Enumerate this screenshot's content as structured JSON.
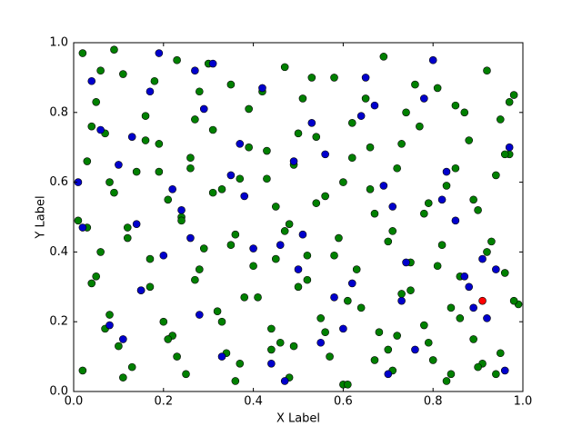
{
  "chart_data": {
    "type": "scatter",
    "xlabel": "X Label",
    "ylabel": "Y Label",
    "xlim": [
      0,
      1
    ],
    "ylim": [
      0,
      1
    ],
    "xticks": [
      {
        "value": 0,
        "label": "0.0"
      },
      0.2,
      0.4,
      0.6,
      0.8,
      {
        "value": 1,
        "label": "1.0"
      }
    ],
    "yticks": [
      {
        "value": 0,
        "label": "0.0"
      },
      0.2,
      0.4,
      0.6,
      0.8,
      {
        "value": 1,
        "label": "1.0"
      }
    ],
    "grid": false,
    "series": [
      {
        "color": "#008000",
        "x": [
          0.02,
          0.11,
          0.23,
          0.35,
          0.47,
          0.58,
          0.69,
          0.81,
          0.92,
          0.98,
          0.05,
          0.16,
          0.28,
          0.39,
          0.51,
          0.62,
          0.74,
          0.85,
          0.95,
          0.07,
          0.19,
          0.31,
          0.43,
          0.54,
          0.66,
          0.77,
          0.88,
          0.97,
          0.03,
          0.14,
          0.26,
          0.37,
          0.49,
          0.6,
          0.72,
          0.83,
          0.94,
          0.09,
          0.21,
          0.33,
          0.45,
          0.56,
          0.67,
          0.79,
          0.9,
          0.01,
          0.12,
          0.24,
          0.36,
          0.48,
          0.59,
          0.71,
          0.82,
          0.93,
          0.06,
          0.17,
          0.29,
          0.4,
          0.52,
          0.63,
          0.75,
          0.86,
          0.96,
          0.04,
          0.15,
          0.27,
          0.38,
          0.5,
          0.61,
          0.73,
          0.84,
          0.99,
          0.08,
          0.2,
          0.32,
          0.44,
          0.55,
          0.68,
          0.78,
          0.89,
          0.1,
          0.22,
          0.34,
          0.46,
          0.57,
          0.7,
          0.8,
          0.91,
          0.02,
          0.13,
          0.25,
          0.36,
          0.48,
          0.6,
          0.71,
          0.83,
          0.94,
          0.06,
          0.18,
          0.3,
          0.42,
          0.53,
          0.65,
          0.76,
          0.87,
          0.97,
          0.04,
          0.16,
          0.27,
          0.39,
          0.5,
          0.62,
          0.73,
          0.85,
          0.96,
          0.08,
          0.19,
          0.31,
          0.43,
          0.54,
          0.66,
          0.78,
          0.89,
          0.03,
          0.12,
          0.24,
          0.35,
          0.47,
          0.58,
          0.7,
          0.81,
          0.92,
          0.05,
          0.17,
          0.28,
          0.41,
          0.52,
          0.64,
          0.75,
          0.86,
          0.98,
          0.07,
          0.21,
          0.33,
          0.44,
          0.56,
          0.67,
          0.79,
          0.9,
          0.11,
          0.23,
          0.37,
          0.49,
          0.61,
          0.72,
          0.84,
          0.95,
          0.09,
          0.26,
          0.45
        ],
        "values": [
          0.97,
          0.91,
          0.95,
          0.88,
          0.93,
          0.9,
          0.96,
          0.87,
          0.92,
          0.85,
          0.83,
          0.79,
          0.86,
          0.81,
          0.84,
          0.77,
          0.8,
          0.82,
          0.78,
          0.74,
          0.71,
          0.75,
          0.69,
          0.73,
          0.7,
          0.76,
          0.72,
          0.68,
          0.66,
          0.63,
          0.67,
          0.61,
          0.65,
          0.6,
          0.64,
          0.59,
          0.62,
          0.57,
          0.55,
          0.58,
          0.53,
          0.56,
          0.51,
          0.54,
          0.52,
          0.49,
          0.47,
          0.5,
          0.45,
          0.48,
          0.44,
          0.46,
          0.42,
          0.43,
          0.4,
          0.38,
          0.41,
          0.36,
          0.39,
          0.35,
          0.37,
          0.33,
          0.34,
          0.31,
          0.29,
          0.32,
          0.27,
          0.3,
          0.26,
          0.28,
          0.24,
          0.25,
          0.22,
          0.2,
          0.23,
          0.18,
          0.21,
          0.17,
          0.19,
          0.15,
          0.13,
          0.16,
          0.11,
          0.14,
          0.1,
          0.12,
          0.09,
          0.08,
          0.06,
          0.07,
          0.05,
          0.03,
          0.04,
          0.02,
          0.06,
          0.03,
          0.05,
          0.92,
          0.89,
          0.94,
          0.86,
          0.9,
          0.84,
          0.88,
          0.8,
          0.83,
          0.76,
          0.72,
          0.78,
          0.7,
          0.74,
          0.67,
          0.71,
          0.64,
          0.68,
          0.6,
          0.63,
          0.57,
          0.61,
          0.54,
          0.58,
          0.51,
          0.55,
          0.47,
          0.44,
          0.49,
          0.42,
          0.46,
          0.39,
          0.43,
          0.36,
          0.4,
          0.33,
          0.3,
          0.35,
          0.27,
          0.32,
          0.24,
          0.29,
          0.21,
          0.26,
          0.18,
          0.15,
          0.2,
          0.12,
          0.17,
          0.09,
          0.14,
          0.07,
          0.04,
          0.1,
          0.08,
          0.13,
          0.02,
          0.16,
          0.05,
          0.11,
          0.98,
          0.64,
          0.38
        ]
      },
      {
        "color": "#0000cc",
        "x": [
          0.04,
          0.13,
          0.22,
          0.31,
          0.4,
          0.49,
          0.58,
          0.67,
          0.76,
          0.85,
          0.94,
          0.08,
          0.17,
          0.26,
          0.35,
          0.44,
          0.53,
          0.62,
          0.71,
          0.8,
          0.89,
          0.97,
          0.02,
          0.11,
          0.2,
          0.29,
          0.38,
          0.47,
          0.56,
          0.65,
          0.74,
          0.83,
          0.92,
          0.06,
          0.15,
          0.24,
          0.33,
          0.42,
          0.51,
          0.6,
          0.69,
          0.78,
          0.87,
          0.96,
          0.1,
          0.19,
          0.28,
          0.37,
          0.46,
          0.55,
          0.64,
          0.73,
          0.82,
          0.91,
          0.01,
          0.14,
          0.27,
          0.5,
          0.7,
          0.88
        ],
        "values": [
          0.89,
          0.73,
          0.58,
          0.94,
          0.41,
          0.66,
          0.27,
          0.82,
          0.12,
          0.49,
          0.35,
          0.19,
          0.86,
          0.44,
          0.62,
          0.08,
          0.77,
          0.31,
          0.53,
          0.95,
          0.24,
          0.7,
          0.47,
          0.15,
          0.39,
          0.81,
          0.56,
          0.03,
          0.68,
          0.9,
          0.37,
          0.63,
          0.21,
          0.75,
          0.29,
          0.52,
          0.1,
          0.87,
          0.45,
          0.18,
          0.59,
          0.84,
          0.33,
          0.06,
          0.65,
          0.97,
          0.22,
          0.71,
          0.42,
          0.14,
          0.79,
          0.26,
          0.55,
          0.38,
          0.6,
          0.48,
          0.92,
          0.35,
          0.05,
          0.3
        ]
      },
      {
        "color": "#ff0000",
        "x": [
          0.91
        ],
        "values": [
          0.26
        ]
      }
    ]
  }
}
